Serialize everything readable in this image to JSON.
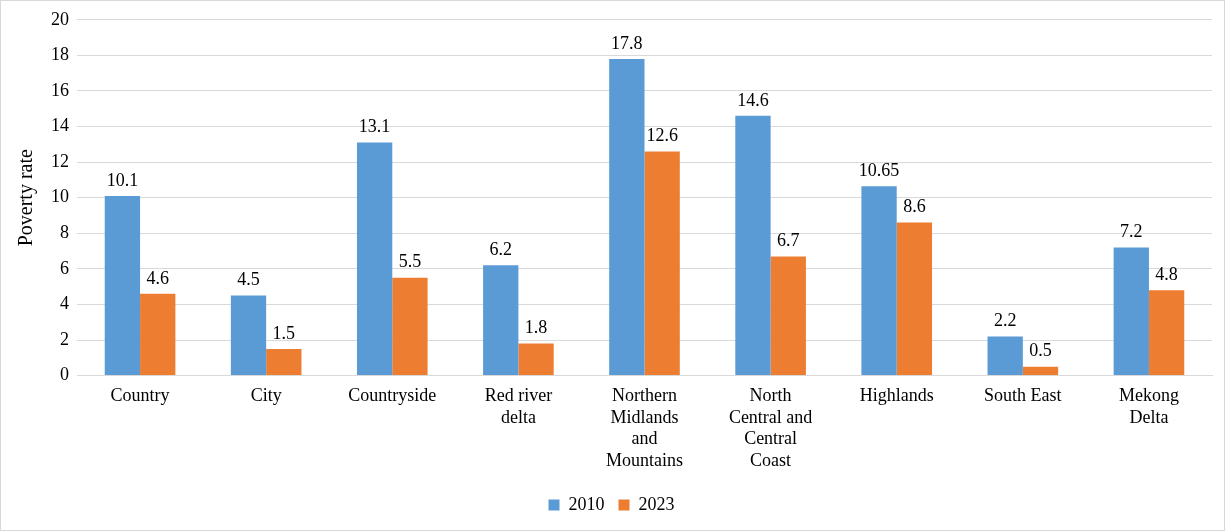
{
  "chart_data": {
    "type": "bar",
    "ylabel": "Poverty rate",
    "categories": [
      "Country",
      "City",
      "Countryside",
      "Red river delta",
      "Northern Midlands and Mountains",
      "North Central and Central Coast",
      "Highlands",
      "South East",
      "Mekong Delta"
    ],
    "series": [
      {
        "name": "2010",
        "color": "#5b9bd5",
        "values": [
          10.1,
          4.5,
          13.1,
          6.2,
          17.8,
          14.6,
          10.65,
          2.2,
          7.2
        ]
      },
      {
        "name": "2023",
        "color": "#ed7d31",
        "values": [
          4.6,
          1.5,
          5.5,
          1.8,
          12.6,
          6.7,
          8.6,
          0.5,
          4.8
        ]
      }
    ],
    "ylim": [
      0,
      20
    ],
    "yticks": [
      0,
      2,
      4,
      6,
      8,
      10,
      12,
      14,
      16,
      18,
      20
    ],
    "grid": "y",
    "legend": "bottom",
    "data_labels": true
  }
}
